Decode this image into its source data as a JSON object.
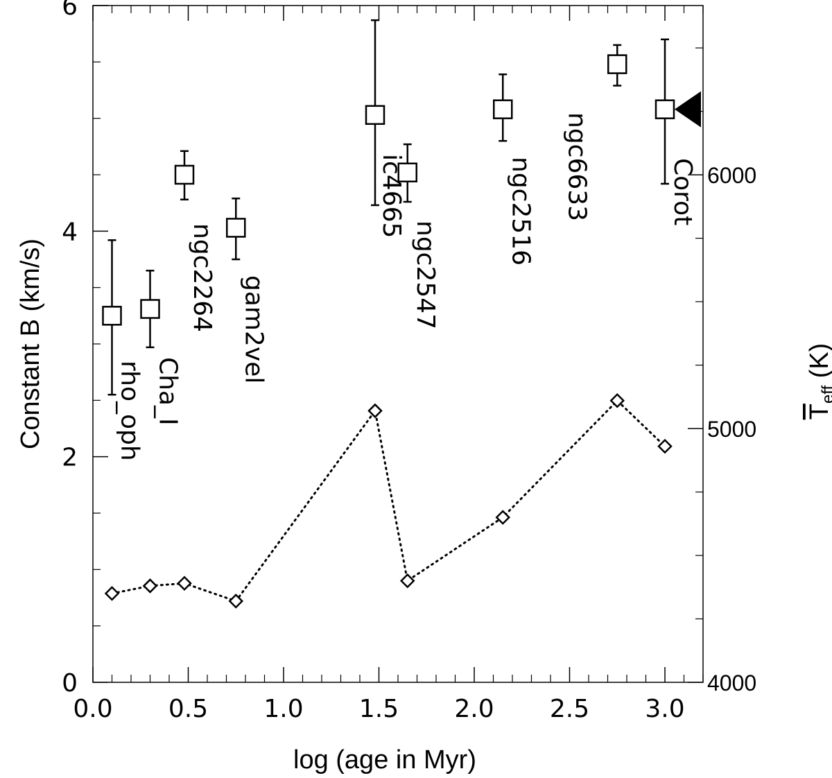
{
  "chart_data": {
    "type": "scatter",
    "xlabel": "log (age in Myr)",
    "ylabel": "Constant B (km/s)",
    "y2label_main": "T",
    "y2label_sub": "eff",
    "y2label_unit": " (K)",
    "xlim": [
      0.0,
      3.2
    ],
    "ylim": [
      0,
      6
    ],
    "y2lim": [
      4000,
      6667
    ],
    "xticks": [
      0.0,
      0.5,
      1.0,
      1.5,
      2.0,
      2.5,
      3.0
    ],
    "xtick_labels": [
      "0.0",
      "0.5",
      "1.0",
      "1.5",
      "2.0",
      "2.5",
      "3.0"
    ],
    "yticks": [
      0,
      2,
      4,
      6
    ],
    "ytick_labels": [
      "0",
      "2",
      "4",
      "6"
    ],
    "y2ticks": [
      4000,
      5000,
      6000
    ],
    "y2tick_labels": [
      "4000",
      "5000",
      "6000"
    ],
    "series": [
      {
        "marker": "square",
        "points": [
          {
            "label": "rho_oph",
            "x": 0.1,
            "y": 3.25,
            "err_low": 2.55,
            "err_high": 3.92
          },
          {
            "label": "Cha_I",
            "x": 0.3,
            "y": 3.31,
            "err_low": 2.97,
            "err_high": 3.65
          },
          {
            "label": "ngc2264",
            "x": 0.48,
            "y": 4.5,
            "err_low": 4.28,
            "err_high": 4.71
          },
          {
            "label": "gam2vel",
            "x": 0.75,
            "y": 4.03,
            "err_low": 3.75,
            "err_high": 4.29
          },
          {
            "label": "ic4665",
            "x": 1.48,
            "y": 5.03,
            "err_low": 4.23,
            "err_high": 5.87
          },
          {
            "label": "ngc2547",
            "x": 1.65,
            "y": 4.52,
            "err_low": 4.26,
            "err_high": 4.77
          },
          {
            "label": "ngc2516",
            "x": 2.15,
            "y": 5.08,
            "err_low": 4.8,
            "err_high": 5.39
          },
          {
            "label": "ngc6633",
            "x": 2.75,
            "y": 5.48,
            "err_low": 5.29,
            "err_high": 5.65
          },
          {
            "label": "Corot",
            "x": 3.0,
            "y": 5.08,
            "err_low": 4.42,
            "err_high": 5.7
          }
        ]
      },
      {
        "marker": "diamond",
        "line": "dotted",
        "axis": "right",
        "points": [
          {
            "x": 0.1,
            "y": 4350
          },
          {
            "x": 0.3,
            "y": 4380
          },
          {
            "x": 0.48,
            "y": 4390
          },
          {
            "x": 0.75,
            "y": 4320
          },
          {
            "x": 1.48,
            "y": 5070
          },
          {
            "x": 1.65,
            "y": 4400
          },
          {
            "x": 2.15,
            "y": 4650
          },
          {
            "x": 2.75,
            "y": 5110
          },
          {
            "x": 3.0,
            "y": 4930
          }
        ]
      }
    ],
    "arrow_marker": {
      "x": 3.08,
      "y": 5.08,
      "direction": "left"
    }
  }
}
